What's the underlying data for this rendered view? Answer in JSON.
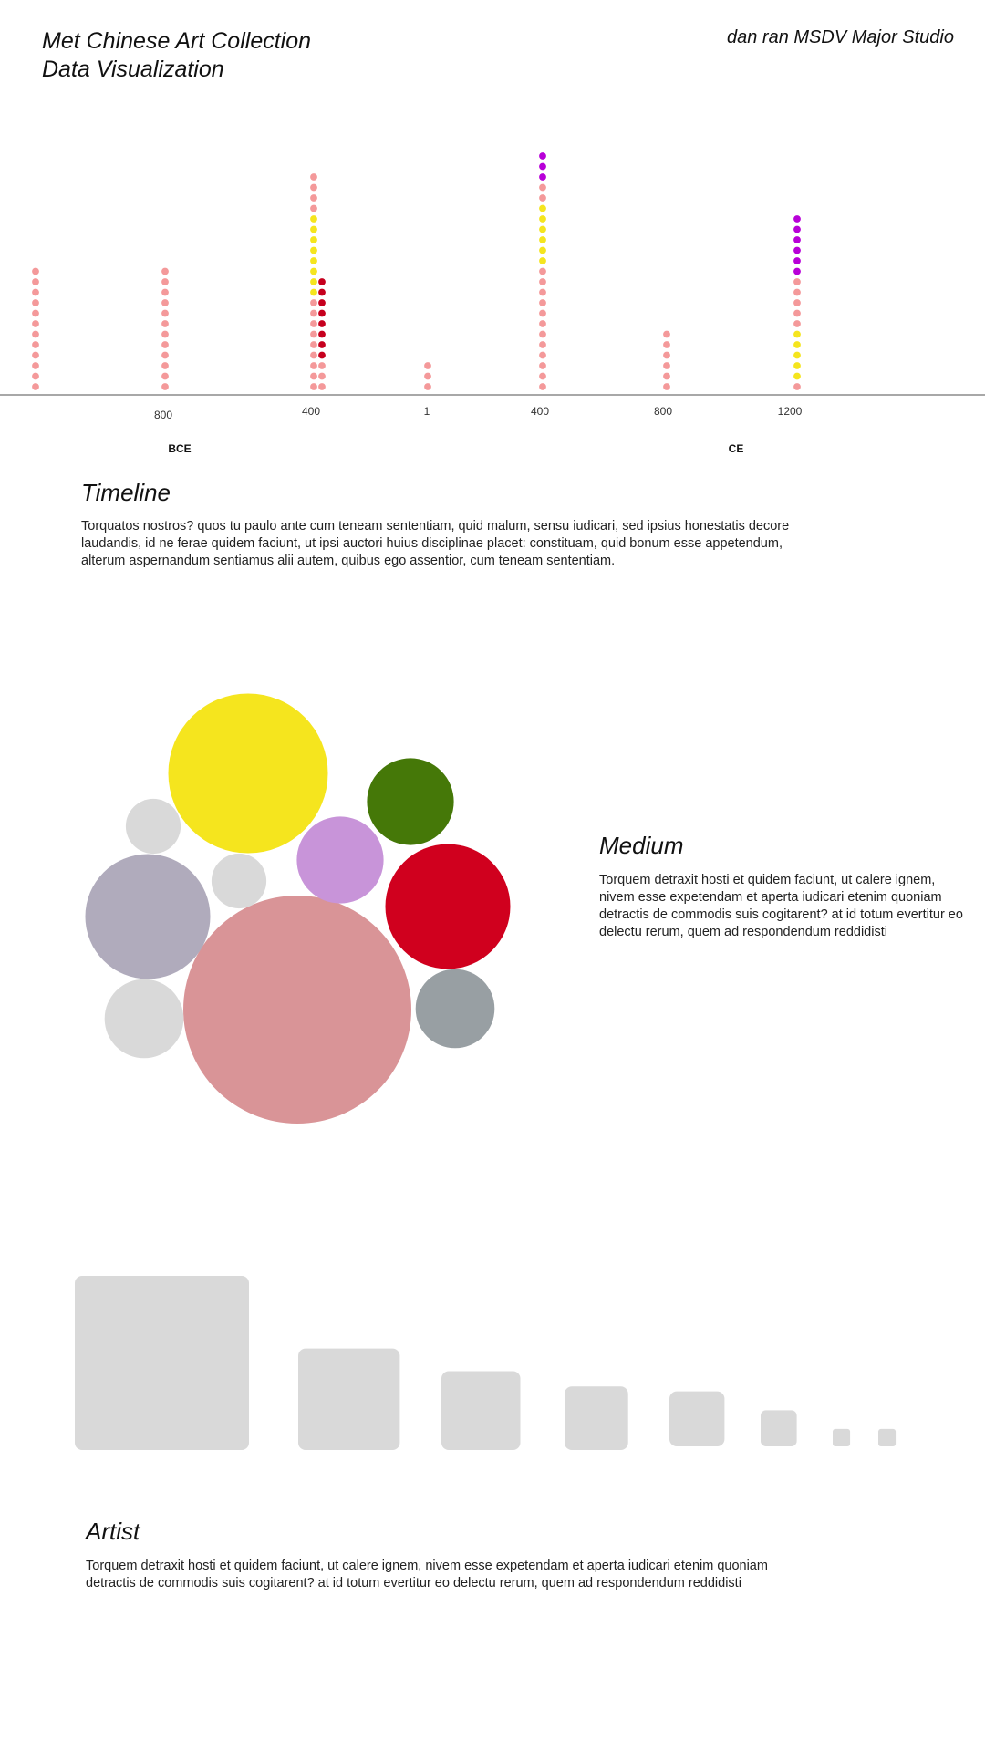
{
  "header": {
    "title_line1": "Met Chinese Art Collection",
    "title_line2": "Data Visualization",
    "author": "dan ran MSDV Major Studio"
  },
  "sections": {
    "timeline": {
      "title": "Timeline",
      "text": "Torquatos nostros? quos tu paulo ante cum teneam sententiam, quid malum, sensu iudicari, sed ipsius honestatis decore laudandis, id ne ferae quidem faciunt, ut ipsi auctori huius disciplinae placet: constituam, quid bonum esse appetendum, alterum aspernandum sentiamus alii autem, quibus ego assentior, cum teneam sententiam."
    },
    "medium": {
      "title": "Medium",
      "text": "Torquem detraxit hosti et quidem faciunt, ut calere ignem, nivem esse expetendam et aperta iudicari etenim quoniam detractis de commodis suis cogitarent? at id totum evertitur eo delectu rerum, quem ad respondendum reddidisti"
    },
    "artist": {
      "title": "Artist",
      "text": "Torquem detraxit hosti et quidem faciunt, ut calere ignem, nivem esse expetendam et aperta iudicari etenim quoniam detractis de commodis suis cogitarent? at id totum evertitur eo delectu rerum, quem ad respondendum reddidisti"
    }
  },
  "chart_data": [
    {
      "type": "scatter",
      "description_kind": "dot-stack timeline",
      "tick_labels": [
        "800",
        "400",
        "1",
        "400",
        "800",
        "1200"
      ],
      "era_labels": [
        "BCE",
        "CE"
      ],
      "colors": {
        "salmon": "#f4999a",
        "yellow": "#f5e51e",
        "crimson": "#c6001e",
        "purple": "#b800d8"
      },
      "columns": [
        {
          "tick": "",
          "stack": [
            {
              "color": "salmon",
              "count": 12
            }
          ]
        },
        {
          "tick": "800",
          "era": "BCE",
          "stack": [
            {
              "color": "salmon",
              "count": 12
            }
          ]
        },
        {
          "tick": "400",
          "era": "BCE",
          "stack": [
            {
              "color": "salmon",
              "count": 9
            },
            {
              "color": "yellow",
              "count": 8
            },
            {
              "color": "salmon",
              "count": 4
            }
          ]
        },
        {
          "tick": "400",
          "era": "BCE",
          "stack": [
            {
              "color": "salmon",
              "count": 3
            },
            {
              "color": "crimson",
              "count": 8
            }
          ]
        },
        {
          "tick": "1",
          "stack": [
            {
              "color": "salmon",
              "count": 3
            }
          ]
        },
        {
          "tick": "400",
          "era": "CE",
          "stack": [
            {
              "color": "salmon",
              "count": 12
            },
            {
              "color": "yellow",
              "count": 6
            },
            {
              "color": "salmon",
              "count": 2
            },
            {
              "color": "purple",
              "count": 3
            }
          ]
        },
        {
          "tick": "800",
          "era": "CE",
          "stack": [
            {
              "color": "salmon",
              "count": 6
            }
          ]
        },
        {
          "tick": "1200",
          "era": "CE",
          "stack": [
            {
              "color": "salmon",
              "count": 1
            },
            {
              "color": "yellow",
              "count": 5
            },
            {
              "color": "salmon",
              "count": 5
            },
            {
              "color": "purple",
              "count": 6
            }
          ]
        }
      ]
    },
    {
      "type": "bubble",
      "description_kind": "packed circles (medium)",
      "bubbles": [
        {
          "color": "#d99497",
          "value": 100
        },
        {
          "color": "#f5e51e",
          "value": 49
        },
        {
          "color": "#d0001e",
          "value": 30
        },
        {
          "color": "#b0abbc",
          "value": 30
        },
        {
          "color": "#c894d9",
          "value": 14.5
        },
        {
          "color": "#457808",
          "value": 14.5
        },
        {
          "color": "#989fa3",
          "value": 12
        },
        {
          "color": "#d9d9d9",
          "value": 12
        },
        {
          "color": "#d9d9d9",
          "value": 5.8
        },
        {
          "color": "#d9d9d9",
          "value": 5.8
        }
      ]
    },
    {
      "type": "bar",
      "description_kind": "squares sized by value (artist)",
      "color": "#d9d9d9",
      "values": [
        100,
        34,
        20.5,
        13.3,
        10,
        4.3,
        1,
        1
      ]
    }
  ]
}
